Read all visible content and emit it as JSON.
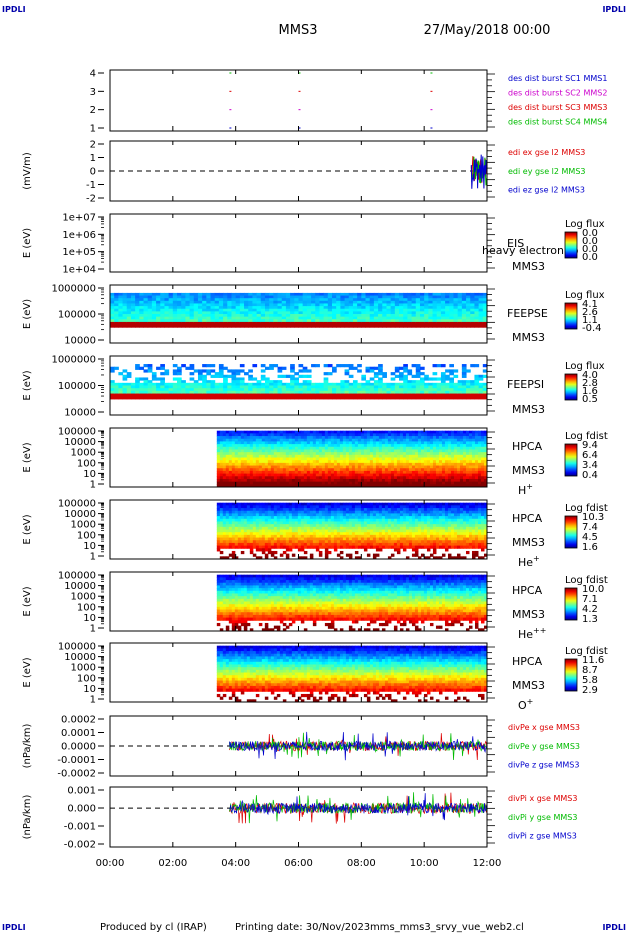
{
  "header": {
    "corner_label": "IPDLI",
    "spacecraft": "MMS3",
    "date": "27/May/2018 00:00"
  },
  "footer": {
    "produced_by": "Produced by cl (IRAP)",
    "printing_date": "Printing date: 30/Nov/2023",
    "filename": "mms_mms3_srvy_vue_web2.cl"
  },
  "colors": {
    "mms1": "#0000cc",
    "mms2": "#cc00cc",
    "mms3": "#dd0000",
    "mms4": "#00bb00",
    "x": "#dd0000",
    "y": "#00bb00",
    "z": "#0000cc"
  },
  "chart_data": {
    "type": "multi-panel time series / spectrogram",
    "x_axis": {
      "ticks": [
        "00:00",
        "02:00",
        "04:00",
        "06:00",
        "08:00",
        "10:00",
        "12:00"
      ],
      "range_hours": [
        0,
        12
      ]
    },
    "panels": [
      {
        "id": "burst",
        "type": "scatter",
        "ylabel": "",
        "yticks": [
          "4",
          "3",
          "2",
          "1"
        ],
        "yrange": [
          0.5,
          4.5
        ],
        "legend": [
          {
            "text": "des dist burst SC1 MMS1",
            "color": "mms1"
          },
          {
            "text": "des dist burst SC2 MMS2",
            "color": "mms2"
          },
          {
            "text": "des dist burst SC3 MMS3",
            "color": "mms3"
          },
          {
            "text": "des dist burst SC4 MMS4",
            "color": "mms4"
          }
        ],
        "burst_times_hours": [
          3.8,
          6.0,
          10.2
        ]
      },
      {
        "id": "edi",
        "type": "line",
        "ylabel": "(mV/m)",
        "yticks": [
          "2",
          "1",
          "0",
          "-1",
          "-2"
        ],
        "yrange": [
          -2.5,
          2.5
        ],
        "legend": [
          {
            "text": "edi ex gse l2 MMS3",
            "color": "x"
          },
          {
            "text": "edi ey gse l2 MMS3",
            "color": "y"
          },
          {
            "text": "edi ez gse l2 MMS3",
            "color": "z"
          }
        ],
        "data_start_hours": 11.5,
        "data_end_hours": 12.0
      },
      {
        "id": "eis",
        "type": "heatmap",
        "ylabel": "E (eV)",
        "yticks": [
          "1e+07",
          "1e+06",
          "1e+05",
          "1e+04"
        ],
        "instrument": [
          "EIS",
          "MMS3"
        ],
        "overlay_text": "heavy electron to",
        "colorbar_title": "Log flux",
        "colorbar_ticks": [
          "0.0",
          "0.0",
          "0.0",
          "0.0"
        ]
      },
      {
        "id": "feepse",
        "type": "heatmap",
        "ylabel": "E (eV)",
        "yticks": [
          "1000000",
          "100000",
          "10000"
        ],
        "instrument": [
          "FEEPSE",
          "MMS3"
        ],
        "colorbar_title": "Log flux",
        "colorbar_ticks": [
          "4.1",
          "2.6",
          "1.1",
          "-0.4"
        ],
        "data_start_hours": 0.0,
        "data_end_hours": 12.0
      },
      {
        "id": "feepsi",
        "type": "heatmap",
        "ylabel": "E (eV)",
        "yticks": [
          "1000000",
          "100000",
          "10000"
        ],
        "instrument": [
          "FEEPSI",
          "MMS3"
        ],
        "colorbar_title": "Log flux",
        "colorbar_ticks": [
          "4.0",
          "2.8",
          "1.6",
          "0.5"
        ],
        "data_start_hours": 0.0,
        "data_end_hours": 12.0
      },
      {
        "id": "hpca_h",
        "type": "heatmap",
        "ylabel": "E (eV)",
        "yticks": [
          "100000",
          "10000",
          "1000",
          "100",
          "10",
          "1"
        ],
        "instrument": [
          "HPCA",
          "MMS3"
        ],
        "species": "H",
        "species_charge": "+",
        "colorbar_title": "Log fdist",
        "colorbar_ticks": [
          "9.4",
          "6.4",
          "3.4",
          "0.4"
        ],
        "data_start_hours": 3.4,
        "data_end_hours": 12.0
      },
      {
        "id": "hpca_he1",
        "type": "heatmap",
        "ylabel": "E (eV)",
        "yticks": [
          "100000",
          "10000",
          "1000",
          "100",
          "10",
          "1"
        ],
        "instrument": [
          "HPCA",
          "MMS3"
        ],
        "species": "He",
        "species_charge": "+",
        "colorbar_title": "Log fdist",
        "colorbar_ticks": [
          "10.3",
          "7.4",
          "4.5",
          "1.6"
        ],
        "data_start_hours": 3.4,
        "data_end_hours": 12.0
      },
      {
        "id": "hpca_he2",
        "type": "heatmap",
        "ylabel": "E (eV)",
        "yticks": [
          "100000",
          "10000",
          "1000",
          "100",
          "10",
          "1"
        ],
        "instrument": [
          "HPCA",
          "MMS3"
        ],
        "species": "He",
        "species_charge": "++",
        "colorbar_title": "Log fdist",
        "colorbar_ticks": [
          "10.0",
          "7.1",
          "4.2",
          "1.3"
        ],
        "data_start_hours": 3.4,
        "data_end_hours": 12.0
      },
      {
        "id": "hpca_o",
        "type": "heatmap",
        "ylabel": "E (eV)",
        "yticks": [
          "100000",
          "10000",
          "1000",
          "100",
          "10",
          "1"
        ],
        "instrument": [
          "HPCA",
          "MMS3"
        ],
        "species": "O",
        "species_charge": "+",
        "colorbar_title": "Log fdist",
        "colorbar_ticks": [
          "11.6",
          "8.7",
          "5.8",
          "2.9"
        ],
        "data_start_hours": 3.4,
        "data_end_hours": 12.0
      },
      {
        "id": "divpe",
        "type": "line",
        "ylabel": "(nPa/km)",
        "yticks": [
          "0.0002",
          "0.0001",
          "0.0000",
          "-0.0001",
          "-0.0002"
        ],
        "yrange": [
          -0.00025,
          0.00025
        ],
        "legend": [
          {
            "text": "divPe x gse MMS3",
            "color": "x"
          },
          {
            "text": "divPe y gse MMS3",
            "color": "y"
          },
          {
            "text": "divPe z gse MMS3",
            "color": "z"
          }
        ],
        "amplitude": 4e-05,
        "data_start_hours": 3.8,
        "data_end_hours": 12.0
      },
      {
        "id": "divpi",
        "type": "line",
        "ylabel": "(nPa/km)",
        "yticks": [
          "0.001",
          "0.000",
          "-0.001",
          "-0.002"
        ],
        "yrange": [
          -0.0022,
          0.0012
        ],
        "legend": [
          {
            "text": "divPi x gse MMS3",
            "color": "x"
          },
          {
            "text": "divPi y gse MMS3",
            "color": "y"
          },
          {
            "text": "divPi z gse MMS3",
            "color": "z"
          }
        ],
        "amplitude": 0.0003,
        "data_start_hours": 3.8,
        "data_end_hours": 12.0
      }
    ]
  }
}
